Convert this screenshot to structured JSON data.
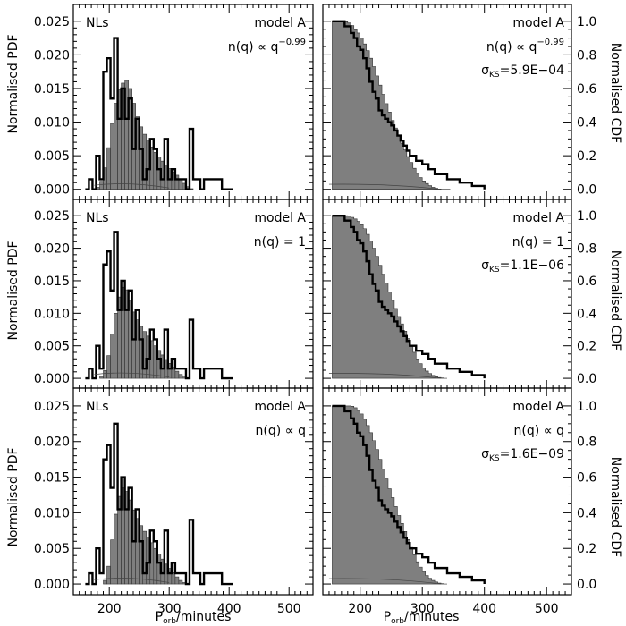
{
  "figure": {
    "pdf_ylabel": "Normalised PDF",
    "cdf_ylabel": "Normalised CDF",
    "xlabel_main": "P",
    "xlabel_sub": "orb",
    "xlabel_unit": "/minutes",
    "fill_color": "#7f7f7f",
    "line_color": "#000000"
  },
  "chart_data": [
    {
      "type": "area",
      "kind": "pdf",
      "row": 0,
      "left_label": "NLs",
      "model_label": "model A",
      "nq_label": "n(q) ∝ q",
      "nq_exp": "−0.99",
      "xlim": [
        140,
        540
      ],
      "ylim": [
        -0.0015,
        0.0275
      ],
      "xticks": [
        200,
        300,
        400,
        500
      ],
      "yticks": [
        0.0,
        0.005,
        0.01,
        0.015,
        0.02,
        0.025
      ],
      "ytick_labels": [
        "0.000",
        "0.005",
        "0.010",
        "0.015",
        "0.020",
        "0.025"
      ],
      "bin_start": 160,
      "bin_width": 6,
      "model_values": [
        0,
        0,
        0,
        0.0003,
        0.0012,
        0.0032,
        0.0062,
        0.0098,
        0.0128,
        0.0148,
        0.0158,
        0.0162,
        0.015,
        0.0128,
        0.0108,
        0.0093,
        0.0082,
        0.0072,
        0.0063,
        0.0055,
        0.0048,
        0.0042,
        0.0036,
        0.0031,
        0.0026,
        0.0021,
        0.0015,
        0.0009,
        0.0004,
        0.0001
      ],
      "observed_values": [
        0,
        0.0015,
        0,
        0.005,
        0.0015,
        0.0175,
        0.0195,
        0.0135,
        0.0225,
        0.0105,
        0.015,
        0.0105,
        0.0135,
        0.006,
        0.0105,
        0.006,
        0.0015,
        0.003,
        0.0075,
        0.006,
        0.003,
        0.0015,
        0.0075,
        0.0015,
        0.003,
        0.0015,
        0.0015,
        0.0015,
        0,
        0.009,
        0.0015,
        0.0015,
        0,
        0.0015,
        0.0015,
        0.0015,
        0.0015,
        0.0015,
        0,
        0,
        0
      ]
    },
    {
      "type": "area",
      "kind": "cdf",
      "row": 0,
      "model_label": "model A",
      "nq_label": "n(q) ∝ q",
      "nq_exp": "−0.99",
      "sigma_label": "σ",
      "sigma_sub": "KS",
      "sigma_value": "=5.9E−04",
      "xlim": [
        140,
        540
      ],
      "ylim": [
        -0.06,
        1.1
      ],
      "xticks": [
        200,
        300,
        400,
        500
      ],
      "yticks": [
        0.0,
        0.2,
        0.4,
        0.6,
        0.8,
        1.0
      ],
      "ytick_labels": [
        "0.0",
        "0.2",
        "0.4",
        "0.6",
        "0.8",
        "1.0"
      ],
      "model_x": [
        155,
        160,
        170,
        175,
        180,
        185,
        190,
        195,
        200,
        205,
        210,
        215,
        220,
        225,
        230,
        235,
        240,
        245,
        250,
        255,
        260,
        265,
        270,
        275,
        280,
        285,
        290,
        295,
        300,
        305,
        310,
        315,
        320,
        325,
        330,
        335,
        340,
        345
      ],
      "model_y": [
        1.0,
        1.0,
        1.0,
        0.997,
        0.99,
        0.975,
        0.955,
        0.93,
        0.9,
        0.865,
        0.825,
        0.78,
        0.73,
        0.675,
        0.62,
        0.565,
        0.51,
        0.46,
        0.41,
        0.365,
        0.32,
        0.275,
        0.235,
        0.195,
        0.16,
        0.125,
        0.095,
        0.07,
        0.05,
        0.035,
        0.022,
        0.012,
        0.006,
        0.002,
        0,
        0,
        0,
        0
      ],
      "observed_x": [
        155,
        165,
        175,
        185,
        190,
        195,
        200,
        205,
        210,
        215,
        220,
        225,
        230,
        235,
        240,
        245,
        250,
        255,
        260,
        265,
        270,
        275,
        280,
        290,
        300,
        310,
        320,
        340,
        360,
        380,
        400
      ],
      "observed_y": [
        1.0,
        1.0,
        0.97,
        0.93,
        0.9,
        0.85,
        0.83,
        0.78,
        0.72,
        0.64,
        0.58,
        0.54,
        0.47,
        0.44,
        0.42,
        0.4,
        0.38,
        0.35,
        0.32,
        0.29,
        0.26,
        0.23,
        0.2,
        0.17,
        0.15,
        0.12,
        0.09,
        0.06,
        0.04,
        0.02,
        0.0
      ]
    },
    {
      "type": "area",
      "kind": "pdf",
      "row": 1,
      "left_label": "NLs",
      "model_label": "model A",
      "nq_label": "n(q) = 1",
      "nq_exp": "",
      "xlim": [
        140,
        540
      ],
      "ylim": [
        -0.0015,
        0.0275
      ],
      "xticks": [
        200,
        300,
        400,
        500
      ],
      "yticks": [
        0.0,
        0.005,
        0.01,
        0.015,
        0.02,
        0.025
      ],
      "ytick_labels": [
        "0.000",
        "0.005",
        "0.010",
        "0.015",
        "0.020",
        "0.025"
      ],
      "bin_start": 160,
      "bin_width": 6,
      "model_values": [
        0,
        0,
        0,
        0,
        0.0003,
        0.0012,
        0.0035,
        0.0068,
        0.01,
        0.0125,
        0.014,
        0.0136,
        0.012,
        0.0102,
        0.009,
        0.008,
        0.0072,
        0.0065,
        0.0058,
        0.005,
        0.0043,
        0.0036,
        0.0029,
        0.0023,
        0.0017,
        0.0011,
        0.0006,
        0.0002,
        0
      ],
      "observed_values": [
        0,
        0.0015,
        0,
        0.005,
        0.0015,
        0.0175,
        0.0195,
        0.0135,
        0.0225,
        0.0105,
        0.015,
        0.0105,
        0.0135,
        0.006,
        0.0105,
        0.006,
        0.0015,
        0.003,
        0.0075,
        0.006,
        0.003,
        0.0015,
        0.0075,
        0.0015,
        0.003,
        0.0015,
        0.0015,
        0.0015,
        0,
        0.009,
        0.0015,
        0.0015,
        0,
        0.0015,
        0.0015,
        0.0015,
        0.0015,
        0.0015,
        0,
        0,
        0
      ]
    },
    {
      "type": "area",
      "kind": "cdf",
      "row": 1,
      "model_label": "model A",
      "nq_label": "n(q) = 1",
      "nq_exp": "",
      "sigma_label": "σ",
      "sigma_sub": "KS",
      "sigma_value": "=1.1E−06",
      "xlim": [
        140,
        540
      ],
      "ylim": [
        -0.06,
        1.1
      ],
      "xticks": [
        200,
        300,
        400,
        500
      ],
      "yticks": [
        0.0,
        0.2,
        0.4,
        0.6,
        0.8,
        1.0
      ],
      "ytick_labels": [
        "0.0",
        "0.2",
        "0.4",
        "0.6",
        "0.8",
        "1.0"
      ],
      "model_x": [
        155,
        165,
        175,
        180,
        185,
        190,
        195,
        200,
        205,
        210,
        215,
        220,
        225,
        230,
        235,
        240,
        245,
        250,
        255,
        260,
        265,
        270,
        275,
        280,
        285,
        290,
        295,
        300,
        305,
        310,
        315,
        320,
        325,
        330,
        335,
        340
      ],
      "model_y": [
        1.0,
        1.0,
        1.0,
        0.997,
        0.99,
        0.98,
        0.965,
        0.945,
        0.92,
        0.885,
        0.845,
        0.8,
        0.75,
        0.695,
        0.64,
        0.585,
        0.53,
        0.48,
        0.43,
        0.38,
        0.335,
        0.29,
        0.245,
        0.2,
        0.16,
        0.12,
        0.09,
        0.065,
        0.045,
        0.03,
        0.018,
        0.01,
        0.005,
        0.002,
        0,
        0
      ],
      "observed_x": [
        155,
        165,
        175,
        185,
        190,
        195,
        200,
        205,
        210,
        215,
        220,
        225,
        230,
        235,
        240,
        245,
        250,
        255,
        260,
        265,
        270,
        275,
        280,
        290,
        300,
        310,
        320,
        340,
        360,
        380,
        400
      ],
      "observed_y": [
        1.0,
        1.0,
        0.97,
        0.93,
        0.9,
        0.85,
        0.83,
        0.78,
        0.72,
        0.64,
        0.58,
        0.54,
        0.47,
        0.44,
        0.42,
        0.4,
        0.38,
        0.35,
        0.32,
        0.29,
        0.26,
        0.23,
        0.2,
        0.17,
        0.15,
        0.12,
        0.09,
        0.06,
        0.04,
        0.02,
        0.0
      ]
    },
    {
      "type": "area",
      "kind": "pdf",
      "row": 2,
      "left_label": "NLs",
      "model_label": "model A",
      "nq_label": "n(q) ∝ q",
      "nq_exp": "",
      "xlim": [
        140,
        540
      ],
      "ylim": [
        -0.0015,
        0.0275
      ],
      "xticks": [
        200,
        300,
        400,
        500
      ],
      "yticks": [
        0.0,
        0.005,
        0.01,
        0.015,
        0.02,
        0.025
      ],
      "ytick_labels": [
        "0.000",
        "0.005",
        "0.010",
        "0.015",
        "0.020",
        "0.025"
      ],
      "bin_start": 160,
      "bin_width": 6,
      "model_values": [
        0,
        0,
        0,
        0,
        0,
        0.0005,
        0.0025,
        0.0062,
        0.0098,
        0.0123,
        0.0135,
        0.013,
        0.0118,
        0.0104,
        0.0092,
        0.0082,
        0.0074,
        0.0066,
        0.0058,
        0.005,
        0.0042,
        0.0035,
        0.0028,
        0.0022,
        0.0016,
        0.001,
        0.0005,
        0.0002,
        0
      ],
      "observed_values": [
        0,
        0.0015,
        0,
        0.005,
        0.0015,
        0.0175,
        0.0195,
        0.0135,
        0.0225,
        0.0105,
        0.015,
        0.0105,
        0.0135,
        0.006,
        0.0105,
        0.006,
        0.0015,
        0.003,
        0.0075,
        0.006,
        0.003,
        0.0015,
        0.0075,
        0.0015,
        0.003,
        0.0015,
        0.0015,
        0.0015,
        0,
        0.009,
        0.0015,
        0.0015,
        0,
        0.0015,
        0.0015,
        0.0015,
        0.0015,
        0.0015,
        0,
        0,
        0
      ]
    },
    {
      "type": "area",
      "kind": "cdf",
      "row": 2,
      "model_label": "model A",
      "nq_label": "n(q) ∝ q",
      "nq_exp": "",
      "sigma_label": "σ",
      "sigma_sub": "KS",
      "sigma_value": "=1.6E−09",
      "xlim": [
        140,
        540
      ],
      "ylim": [
        -0.06,
        1.1
      ],
      "xticks": [
        200,
        300,
        400,
        500
      ],
      "yticks": [
        0.0,
        0.2,
        0.4,
        0.6,
        0.8,
        1.0
      ],
      "ytick_labels": [
        "0.0",
        "0.2",
        "0.4",
        "0.6",
        "0.8",
        "1.0"
      ],
      "model_x": [
        155,
        165,
        175,
        185,
        190,
        195,
        200,
        205,
        210,
        215,
        220,
        225,
        230,
        235,
        240,
        245,
        250,
        255,
        260,
        265,
        270,
        275,
        280,
        285,
        290,
        295,
        300,
        305,
        310,
        315,
        320,
        325,
        330,
        335,
        340
      ],
      "model_y": [
        1.0,
        1.0,
        1.0,
        0.998,
        0.99,
        0.975,
        0.955,
        0.925,
        0.89,
        0.85,
        0.805,
        0.755,
        0.7,
        0.645,
        0.59,
        0.535,
        0.485,
        0.435,
        0.385,
        0.34,
        0.295,
        0.25,
        0.205,
        0.165,
        0.125,
        0.095,
        0.07,
        0.048,
        0.032,
        0.02,
        0.011,
        0.005,
        0.002,
        0,
        0
      ],
      "observed_x": [
        155,
        165,
        175,
        185,
        190,
        195,
        200,
        205,
        210,
        215,
        220,
        225,
        230,
        235,
        240,
        245,
        250,
        255,
        260,
        265,
        270,
        275,
        280,
        290,
        300,
        310,
        320,
        340,
        360,
        380,
        400
      ],
      "observed_y": [
        1.0,
        1.0,
        0.97,
        0.93,
        0.9,
        0.85,
        0.83,
        0.78,
        0.72,
        0.64,
        0.58,
        0.54,
        0.47,
        0.44,
        0.42,
        0.4,
        0.38,
        0.35,
        0.32,
        0.29,
        0.26,
        0.23,
        0.2,
        0.17,
        0.15,
        0.12,
        0.09,
        0.06,
        0.04,
        0.02,
        0.0
      ]
    }
  ]
}
